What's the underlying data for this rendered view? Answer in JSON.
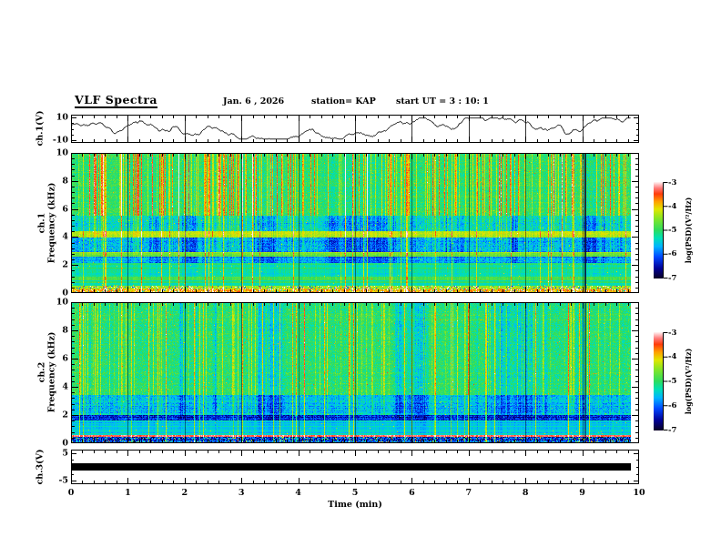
{
  "header": {
    "title": "VLF Spectra",
    "date": "Jan. 6 , 2026",
    "station": "station= KAP",
    "start_ut": "start UT =  3 : 10: 1"
  },
  "axes": {
    "x": {
      "label": "Time (min)",
      "ticks": [
        0,
        1,
        2,
        3,
        4,
        5,
        6,
        7,
        8,
        9,
        10
      ],
      "range": [
        0,
        10
      ],
      "minor_step": 0.2
    },
    "wave": {
      "label": "ch.1(V)",
      "ticks": [
        10,
        -10
      ],
      "minor_ticks": [
        5,
        0,
        -5
      ],
      "range": [
        -12.4,
        12.4
      ]
    },
    "spec1": {
      "label_line1": "ch.1",
      "label_line2": "Frequency (kHz)",
      "ticks": [
        10,
        8,
        6,
        4,
        2,
        0
      ],
      "range": [
        0,
        10
      ],
      "minor_step": 0.4
    },
    "spec2": {
      "label_line1": "ch.2",
      "label_line2": "Frequency (kHz)",
      "ticks": [
        10,
        8,
        6,
        4,
        2,
        0
      ],
      "range": [
        0,
        10
      ],
      "minor_step": 0.4
    },
    "ch3": {
      "label": "ch.3(V)",
      "ticks": [
        5,
        -5
      ],
      "minor_ticks": [
        2.5,
        0,
        -2.5
      ],
      "range": [
        -6.3,
        6.3
      ]
    }
  },
  "colorbar": {
    "label": "log(PSD)(V²/Hz)",
    "ticks": [
      -3,
      -4,
      -5,
      -6,
      -7
    ],
    "range": [
      -3,
      -7
    ]
  },
  "chart_data": {
    "type": "multipanel",
    "title": "VLF Spectra",
    "station": "KAP",
    "date": "Jan. 6 , 2026",
    "start_ut": "3 : 10: 1",
    "time_axis": {
      "label": "Time (min)",
      "range_min": [
        0,
        10
      ],
      "data_end_min": 9.86,
      "grid_minutes": [
        1,
        2,
        3,
        4,
        5,
        6,
        7,
        8,
        9
      ]
    },
    "panels": [
      {
        "id": "ch1_waveform",
        "type": "line",
        "ylabel": "ch.1(V)",
        "ylim": [
          -10,
          10
        ],
        "description": "dense noisy voltage trace fluctuating around +3 V, excursions 0 to 8 V",
        "mean": 3.3,
        "spread": 2.2,
        "seed": 11,
        "color": "#000000"
      },
      {
        "id": "ch1_spectrogram",
        "type": "heatmap",
        "ylabel": "ch.1 Frequency (kHz)",
        "flim_khz": [
          0,
          10
        ],
        "zlim_log_psd": [
          -7,
          -3
        ],
        "seed": 7,
        "bands_fmin_fmax_base_noise_streak_patch_speckle": [
          [
            5.5,
            10.0,
            -5.0,
            0.25,
            1.0,
            0.25,
            0
          ],
          [
            4.4,
            5.5,
            -5.45,
            0.3,
            0.45,
            0.9,
            0
          ],
          [
            3.95,
            4.4,
            -4.35,
            0.15,
            0.2,
            0.0,
            0
          ],
          [
            2.95,
            3.95,
            -5.7,
            0.32,
            0.3,
            0.9,
            0
          ],
          [
            2.6,
            2.95,
            -4.65,
            0.15,
            0.0,
            0.0,
            0
          ],
          [
            2.15,
            2.6,
            -5.8,
            0.3,
            0.0,
            0.7,
            0
          ],
          [
            1.15,
            2.15,
            -5.25,
            0.12,
            0.0,
            0.2,
            0
          ],
          [
            0.9,
            1.15,
            -4.7,
            0.12,
            0.0,
            0.0,
            0
          ],
          [
            0.55,
            0.9,
            -5.2,
            0.07,
            0.0,
            0.0,
            0
          ],
          [
            0.3,
            0.55,
            -4.5,
            0.18,
            0.0,
            0.0,
            1
          ],
          [
            0.0,
            0.3,
            -4.0,
            0.4,
            0.0,
            0.0,
            1
          ]
        ],
        "thin_line_prob": 0.06,
        "broad_streak_prob": 0.22,
        "dark_columns_min": [
          9.05
        ]
      },
      {
        "id": "ch2_spectrogram",
        "type": "heatmap",
        "ylabel": "ch.2 Frequency (kHz)",
        "flim_khz": [
          0,
          10
        ],
        "zlim_log_psd": [
          -7,
          -3
        ],
        "seed": 29,
        "bands_fmin_fmax_base_noise_streak_patch_speckle": [
          [
            3.4,
            10.0,
            -5.05,
            0.28,
            0.5,
            0.75,
            0
          ],
          [
            2.0,
            3.4,
            -5.6,
            0.3,
            0.3,
            0.9,
            0
          ],
          [
            1.6,
            2.0,
            -6.25,
            0.35,
            0.0,
            0.3,
            0
          ],
          [
            0.6,
            1.6,
            -5.5,
            0.1,
            0.0,
            0.15,
            0
          ],
          [
            0.42,
            0.6,
            -3.35,
            0.15,
            0.0,
            0.0,
            0
          ],
          [
            0.0,
            0.42,
            -6.2,
            0.55,
            0.0,
            0.0,
            1
          ]
        ],
        "thin_line_prob": 0.05,
        "broad_streak_prob": 0.12,
        "dark_columns_min": [
          9.05
        ]
      },
      {
        "id": "ch3",
        "type": "line",
        "ylabel": "ch.3(V)",
        "ylim": [
          -5,
          5
        ],
        "description": "flat saturated trace at 0 V rendered as thick black bar",
        "value": 0,
        "half_thickness_v": 1.4,
        "color": "#000000"
      }
    ],
    "colormap_stops_t_r_g_b": [
      [
        0.0,
        10,
        0,
        40
      ],
      [
        0.1,
        0,
        0,
        150
      ],
      [
        0.22,
        0,
        70,
        255
      ],
      [
        0.33,
        0,
        180,
        255
      ],
      [
        0.42,
        0,
        225,
        180
      ],
      [
        0.5,
        45,
        220,
        95
      ],
      [
        0.62,
        130,
        230,
        40
      ],
      [
        0.72,
        225,
        230,
        0
      ],
      [
        0.8,
        255,
        160,
        0
      ],
      [
        0.88,
        255,
        60,
        10
      ],
      [
        0.94,
        255,
        120,
        120
      ],
      [
        1.0,
        255,
        235,
        235
      ]
    ]
  }
}
